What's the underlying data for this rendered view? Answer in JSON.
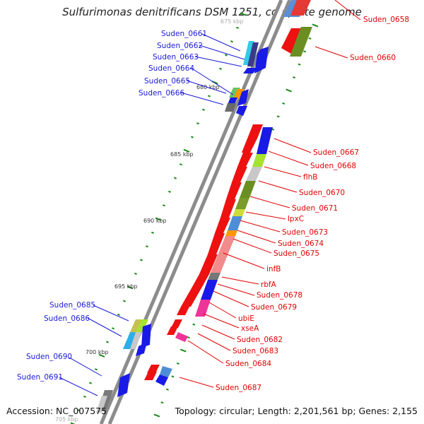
{
  "title": "Sulfurimonas denitrificans DSM 1251, complete genome",
  "footer": {
    "accession": "Accession: NC_007575",
    "summary": "Topology: circular; Length: 2,201,561 bp; Genes: 2,155"
  },
  "colors": {
    "forward_label": "#1a1ad6",
    "reverse_label": "#e00000",
    "backbone": "#8c8c8c",
    "tick": "#1a8a1a"
  },
  "scale_labels": [
    "675 kbp",
    "680 kbp",
    "685 kbp",
    "690 kbp",
    "695 kbp",
    "700 kbp",
    "705 kbp"
  ],
  "left_labels": [
    "Suden_0661",
    "Suden_0662",
    "Suden_0663",
    "Suden_0664",
    "Suden_0665",
    "Suden_0666",
    "Suden_0685",
    "Suden_0686",
    "Suden_0690",
    "Suden_0691"
  ],
  "right_labels": [
    "Suden_0658",
    "Suden_0660",
    "Suden_0667",
    "Suden_0668",
    "flhB",
    "Suden_0670",
    "Suden_0671",
    "lpxC",
    "Suden_0673",
    "Suden_0674",
    "Suden_0675",
    "infB",
    "rbfA",
    "Suden_0678",
    "Suden_0679",
    "ubiE",
    "xseA",
    "Suden_0682",
    "Suden_0683",
    "Suden_0684",
    "Suden_0687"
  ]
}
